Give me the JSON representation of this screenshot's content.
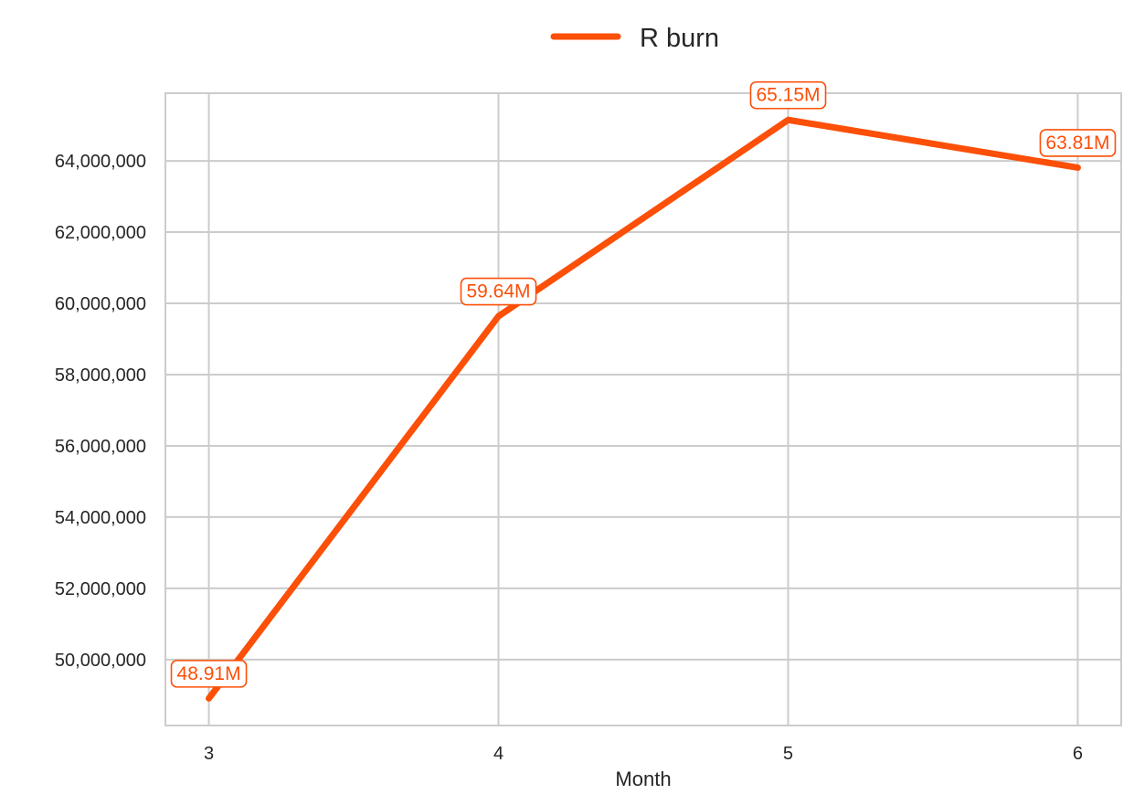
{
  "chart_data": {
    "type": "line",
    "title": "",
    "xlabel": "Month",
    "ylabel": "",
    "x": [
      3,
      4,
      5,
      6
    ],
    "xlim": [
      2.85,
      6.15
    ],
    "ylim": [
      48150000,
      65900000
    ],
    "y_ticks": [
      50000000,
      52000000,
      54000000,
      56000000,
      58000000,
      60000000,
      62000000,
      64000000
    ],
    "y_tick_labels": [
      "50,000,000",
      "52,000,000",
      "54,000,000",
      "56,000,000",
      "58,000,000",
      "60,000,000",
      "62,000,000",
      "64,000,000"
    ],
    "x_tick_labels": [
      "3",
      "4",
      "5",
      "6"
    ],
    "grid": true,
    "legend_placement": "top-center",
    "series": [
      {
        "name": "R burn",
        "color": "#fc4f08",
        "values": [
          48910000,
          59640000,
          65150000,
          63810000
        ],
        "labels": [
          "48.91M",
          "59.64M",
          "65.15M",
          "63.81M"
        ]
      }
    ]
  }
}
